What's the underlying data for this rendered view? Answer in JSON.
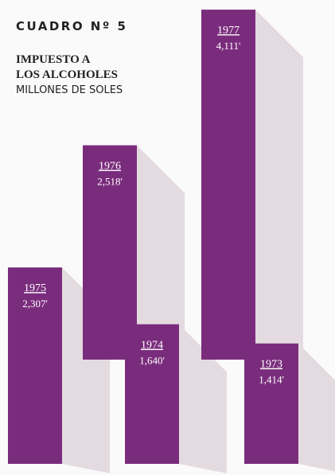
{
  "chart_data": {
    "type": "bar",
    "title": "CUADRO Nº 5",
    "subtitle": [
      "IMPUESTO A",
      "LOS ALCOHOLES"
    ],
    "unit_label": "MILLONES DE SOLES",
    "categories": [
      "1975",
      "1976",
      "1974",
      "1977",
      "1973"
    ],
    "values": [
      2307,
      2518,
      1640,
      4111,
      1414
    ],
    "value_labels": [
      "2,307'",
      "2,518'",
      "1,640'",
      "4,111'",
      "1,414'"
    ],
    "color": "#7a2c7c"
  }
}
